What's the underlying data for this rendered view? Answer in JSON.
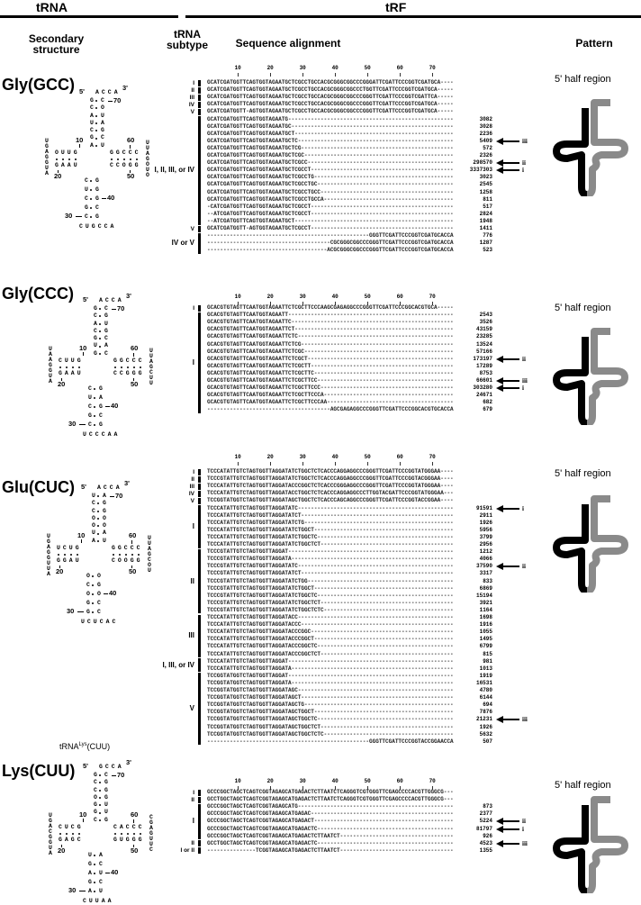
{
  "header": {
    "trna": "tRNA",
    "trf": "tRF"
  },
  "subheaders": {
    "secondary_structure": "Secondary structure",
    "subtype": "tRNA subtype",
    "alignment": "Sequence alignment",
    "pattern": "Pattern"
  },
  "ruler": [
    "10",
    "20",
    "30",
    "40",
    "50",
    "60",
    "70"
  ],
  "pattern_label": "5' half region",
  "colors": {
    "five_prime": "#000000",
    "three_prime": "#8a8a8a"
  },
  "lys_annotation": {
    "prefix": "tRNA",
    "sup": "Lys",
    "suffix": "(CUU)"
  },
  "structure_labels": {
    "five": "5'",
    "three": "3'",
    "n10": "10",
    "n20": "20",
    "n30": "30",
    "n40": "40",
    "n50": "50",
    "n60": "60",
    "n70": "70"
  },
  "blocks": [
    {
      "name": "Gly(GCC)",
      "structure": {
        "tail": "ACCA",
        "acc5": "GCAUCGA",
        "acc3": "COUAGCU",
        "dTop": "OUUG",
        "dBot": "GAAU",
        "dLoop": "UGAGGUA",
        "tTop": "GGCCC",
        "tBot": "CCOGG",
        "tLoop": "UUAGOUO",
        "acL": "CUCGC",
        "acR": "GGGCG",
        "acLoop": "CUGCCA"
      },
      "subtypes": [
        {
          "label": "I",
          "rows": [
            0,
            0
          ]
        },
        {
          "label": "II",
          "rows": [
            1,
            1
          ]
        },
        {
          "label": "III",
          "rows": [
            2,
            2
          ]
        },
        {
          "label": "IV",
          "rows": [
            3,
            3
          ]
        },
        {
          "label": "V",
          "rows": [
            4,
            4
          ]
        },
        {
          "label": "I, II, III, or IV",
          "rows": [
            5,
            19
          ]
        },
        {
          "label": "V",
          "rows": [
            20,
            20
          ]
        },
        {
          "label": "IV or V",
          "rows": [
            21,
            23
          ]
        }
      ],
      "rows": [
        {
          "seq": "GCATCGATGGTTCAGTGGTAGAATGCTCGCCTGCCACGCGGGCGGCCCGGGATTCGATTCCCGGTCGATGCA---",
          "count": ""
        },
        {
          "seq": "GCATCGATGGTTCAGTGGTAGAATGCTCGCCTGCCACGCGGGCGGCCCTGGTTCGATTCCCGGTCGATGCA---",
          "count": ""
        },
        {
          "seq": "GCATCGATGGTTCAGTGGTAGAATGCTCGCCTGCCACGCGGGCGGCCCGGGTTCGATTCCCGGTCGATTCA---",
          "count": ""
        },
        {
          "seq": "GCATCGATGGTTCAGTGGTAGAATGCTCGCCTGCCACGCGGGCGGCCCGGGTTCGATTCCCGGTCGATGCA---",
          "count": ""
        },
        {
          "seq": "GCATCGATGGTT-AGTGGTAGAATGCTCGCCTGCCACGCGGGCGGCCCGGGTTCGATTCCCGGTCGATGCA---",
          "count": ""
        },
        {
          "seq": "GCATCGATGGTTCAGTGGTAGAATG",
          "count": "3082"
        },
        {
          "seq": "GCATCGATGGTTCAGTGGTAGAATGC",
          "count": "3028"
        },
        {
          "seq": "GCATCGATGGTTCAGTGGTAGAATGCT",
          "count": "2236"
        },
        {
          "seq": "GCATCGATGGTTCAGTGGTAGAATGCTC",
          "count": "5409",
          "arrow": "iii"
        },
        {
          "seq": "GCATCGATGGTTCAGTGGTAGAATGCTCG",
          "count": "572"
        },
        {
          "seq": "GCATCGATGGTTCAGTGGTAGAATGCTCGC",
          "count": "2326"
        },
        {
          "seq": "GCATCGATGGTTCAGTGGTAGAATGCTCGCC",
          "count": "298570",
          "arrow": "ii"
        },
        {
          "seq": "GCATCGATGGTTCAGTGGTAGAATGCTCGCCT",
          "count": "3337303",
          "arrow": "i"
        },
        {
          "seq": "GCATCGATGGTTCAGTGGTAGAATGCTCGCCTG",
          "count": "3023"
        },
        {
          "seq": "GCATCGATGGTTCAGTGGTAGAATGCTCGCCTGC",
          "count": "2545"
        },
        {
          "seq": "GCATCGATGGTTCAGTGGTAGAATGCTCGCCTGCC",
          "count": "1258"
        },
        {
          "seq": "GCATCGATGGTTCAGTGGTAGAATGCTCGCCTGCCA",
          "count": "811"
        },
        {
          "seq": "-CATCGATGGTTCAGTGGTAGAATGCTCGCCT",
          "count": "517"
        },
        {
          "seq": "--ATCGATGGTTCAGTGGTAGAATGCTCGCCT",
          "count": "2824"
        },
        {
          "seq": "--ATCGATGGTTCAGTGGTAGAATGCT",
          "count": "1948"
        },
        {
          "seq": "GCATCGATGGTT-AGTGGTAGAATGCTCGCCT",
          "count": "1411"
        },
        {
          "seq": "--------------------------------------------------GGGTTCGATTCCCGGTCGATGCACCA",
          "count": "776"
        },
        {
          "seq": "--------------------------------------CGCGGGCGGCCCGGGTTCGATTCCCGGTCGATGCACCA",
          "count": "1287"
        },
        {
          "seq": "-------------------------------------ACGCGGGCGGCCCGGGTTCGATTCCCGGTCGATGCACCA",
          "count": "523"
        }
      ]
    },
    {
      "name": "Gly(CCC)",
      "structure": {
        "tail": "ACCA",
        "acc5": "GCACGUG",
        "acc3": "CGUGCAC",
        "dTop": "CUUG",
        "dBot": "GAAU",
        "dLoop": "UAAGGUA",
        "tTop": "GGCCC",
        "tBot": "CCGGG",
        "tLoop": "UUAGCUU",
        "acL": "CUCGC",
        "acR": "GAGCG",
        "acLoop": "UCCCAA"
      },
      "subtypes": [
        {
          "label": "I",
          "rows": [
            0,
            0
          ]
        },
        {
          "label": "I",
          "rows": [
            1,
            14
          ]
        }
      ],
      "rows": [
        {
          "seq": "GCACGTGTAGTTCAATGGTAGAATTCTCGCTTCCCAAGCGAGAGGCCCGGGTTCGATTCCCGGCACGTGCA---",
          "count": ""
        },
        {
          "seq": "GCACGTGTAGTTCAATGGTAGAATT",
          "count": "2543"
        },
        {
          "seq": "GCACGTGTAGTTCAATGGTAGAATTC",
          "count": "3526"
        },
        {
          "seq": "GCACGTGTAGTTCAATGGTAGAATTCT",
          "count": "43159"
        },
        {
          "seq": "GCACGTGTAGTTCAATGGTAGAATTCTC",
          "count": "23285"
        },
        {
          "seq": "GCACGTGTAGTTCAATGGTAGAATTCTCG",
          "count": "13524"
        },
        {
          "seq": "GCACGTGTAGTTCAATGGTAGAATTCTCGC",
          "count": "57166"
        },
        {
          "seq": "GCACGTGTAGTTCAATGGTAGAATTCTCGCT",
          "count": "173197",
          "arrow": "ii"
        },
        {
          "seq": "GCACGTGTAGTTCAATGGTAGAATTCTCGCTT",
          "count": "17289"
        },
        {
          "seq": "GCACGTGTAGTTCAATGGTAGAATTCTCGCTTC",
          "count": "8753"
        },
        {
          "seq": "GCACGTGTAGTTCAATGGTAGAATTCTCGCTTCC",
          "count": "66601",
          "arrow": "iii"
        },
        {
          "seq": "GCACGTGTAGTTCAATGGTAGAATTCTCGCTTCCC",
          "count": "303280",
          "arrow": "i"
        },
        {
          "seq": "GCACGTGTAGTTCAATGGTAGAATTCTCGCTTCCCA",
          "count": "24671"
        },
        {
          "seq": "GCACGTGTAGTTCAATGGTAGAATTCTCGCTTCCCAA",
          "count": "682"
        },
        {
          "seq": "--------------------------------------AGCGAGAGGCCCGGGTTCGATTCCCGGCACGTGCACCA",
          "count": "679"
        }
      ]
    },
    {
      "name": "Glu(CUC)",
      "structure": {
        "tail": "ACCA",
        "acc5": "UCCOOUA",
        "acc3": "AGGOOAU",
        "dTop": "UCUG",
        "dBot": "GGAU",
        "dLoop": "UGAGGUUA",
        "tTop": "GGCCC",
        "tBot": "COOGG",
        "tLoop": "UUAGCOU",
        "acL": "OCOGG",
        "acR": "OGOCC",
        "acLoop": "UCUCAC"
      },
      "subtypes": [
        {
          "label": "I",
          "rows": [
            0,
            0
          ]
        },
        {
          "label": "II",
          "rows": [
            1,
            1
          ]
        },
        {
          "label": "III",
          "rows": [
            2,
            2
          ]
        },
        {
          "label": "IV",
          "rows": [
            3,
            3
          ]
        },
        {
          "label": "V",
          "rows": [
            4,
            4
          ]
        },
        {
          "label": "I",
          "rows": [
            5,
            10
          ]
        },
        {
          "label": "II",
          "rows": [
            11,
            19
          ]
        },
        {
          "label": "III",
          "rows": [
            20,
            25
          ]
        },
        {
          "label": "I, III, or IV",
          "rows": [
            26,
            27
          ]
        },
        {
          "label": "V",
          "rows": [
            28,
            37
          ]
        }
      ],
      "rows": [
        {
          "seq": "TCCCATATTGTCTAGTGGTTAGGATATCTGGCTCTCACCCAGGAGGCCCGGGTTCGATTCCCGGTATGGGAA---",
          "count": ""
        },
        {
          "seq": "TCCCGTATTGTCTAGTGGTTAGGATATCTGGCTCTCACCCAGGAGGCCCGGGTTCGATTCCCGGTACGGGAA---",
          "count": ""
        },
        {
          "seq": "TCCCATATTGTCTAGTGGTTAGGATACCCGGCTCTCACCCGGGAGGCCCGGGTTCGATTCCCGGTATGGGAA---",
          "count": ""
        },
        {
          "seq": "TCCCATATTGTCTAGTGGTTAGGATACCTGGCTCTCACCCAGGAGGCCCTTGGTACGATTCCCGGTATGGGAA---",
          "count": ""
        },
        {
          "seq": "TCCGGTATGGTCTAGTGGTTAGGATAGCTGGCTCTCACCCAGCAGGCCCGGGTTCGATTCCCGGTACCGGAA---",
          "count": ""
        },
        {
          "seq": "TCCCATATTGTCTAGTGGTTAGGATATC",
          "count": "91591",
          "arrow": "i"
        },
        {
          "seq": "TCCCATATTGTCTAGTGGTTAGGATATCT",
          "count": "2911"
        },
        {
          "seq": "TCCCATATTGTCTAGTGGTTAGGATATCTG",
          "count": "1926"
        },
        {
          "seq": "TCCCATATTGTCTAGTGGTTAGGATATCTGGCT",
          "count": "5956"
        },
        {
          "seq": "TCCCATATTGTCTAGTGGTTAGGATATCTGGCTC",
          "count": "3799"
        },
        {
          "seq": "TCCCATATTGTCTAGTGGTTAGGATATCTGGCTCT",
          "count": "2956"
        },
        {
          "seq": "TCCCGTATTGTCTAGTGGTTAGGAT",
          "count": "1212"
        },
        {
          "seq": "TCCCGTATTGTCTAGTGGTTAGGATA",
          "count": "4066"
        },
        {
          "seq": "TCCCGTATTGTCTAGTGGTTAGGATATC",
          "count": "37590",
          "arrow": "ii"
        },
        {
          "seq": "TCCCGTATTGTCTAGTGGTTAGGATATCT",
          "count": "3317"
        },
        {
          "seq": "TCCCGTATTGTCTAGTGGTTAGGATATCTGG",
          "count": "833"
        },
        {
          "seq": "TCCCGTATTGTCTAGTGGTTAGGATATCTGGCT",
          "count": "6869"
        },
        {
          "seq": "TCCCGTATTGTCTAGTGGTTAGGATATCTGGCTC",
          "count": "15194"
        },
        {
          "seq": "TCCCGTATTGTCTAGTGGTTAGGATATCTGGCTCT",
          "count": "3921"
        },
        {
          "seq": "TCCCGTATTGTCTAGTGGTTAGGATATCTGGCTCTC",
          "count": "1164"
        },
        {
          "seq": "TCCCATATTGTCTAGTGGTTAGGATACC",
          "count": "1698"
        },
        {
          "seq": "TCCCATATTGTCTAGTGGTTAGGATACCC",
          "count": "1916"
        },
        {
          "seq": "TCCCATATTGTCTAGTGGTTAGGATACCCGGC",
          "count": "1055"
        },
        {
          "seq": "TCCCATATTGTCTAGTGGTTAGGATACCCGGCT",
          "count": "1495"
        },
        {
          "seq": "TCCCATATTGTCTAGTGGTTAGGATACCCGGCTC",
          "count": "6799"
        },
        {
          "seq": "TCCCATATTGTCTAGTGGTTAGGATACCCGGCTCT",
          "count": "815"
        },
        {
          "seq": "TCCCATATTGTCTAGTGGTTAGGAT",
          "count": "981"
        },
        {
          "seq": "TCCCATATTGTCTAGTGGTTAGGATA",
          "count": "1013"
        },
        {
          "seq": "TCCGGTATGGTCTAGTGGTTAGGAT",
          "count": "1919"
        },
        {
          "seq": "TCCGGTATGGTCTAGTGGTTAGGATA",
          "count": "16531"
        },
        {
          "seq": "TCCGGTATGGTCTAGTGGTTAGGATAGC",
          "count": "4780"
        },
        {
          "seq": "TCCGGTATGGTCTAGTGGTTAGGATAGCT",
          "count": "6144"
        },
        {
          "seq": "TCCGGTATGGTCTAGTGGTTAGGATAGCTG",
          "count": "694"
        },
        {
          "seq": "TCCGGTATGGTCTAGTGGTTAGGATAGCTGGCT",
          "count": "7876"
        },
        {
          "seq": "TCCGGTATGGTCTAGTGGTTAGGATAGCTGGCTC",
          "count": "21231",
          "arrow": "iii"
        },
        {
          "seq": "TCCGGTATGGTCTAGTGGTTAGGATAGCTGGCTCT",
          "count": "1926"
        },
        {
          "seq": "TCCGGTATGGTCTAGTGGTTAGGATAGCTGGCTCTC",
          "count": "5632"
        },
        {
          "seq": "--------------------------------------------------GGGTTCGATTCCCGGTACCGGAACCA",
          "count": "507"
        }
      ]
    },
    {
      "name": "Lys(CUU)",
      "structure": {
        "tail": "GCCA",
        "acc5": "GCCOGGC",
        "acc3": "CGGGUUG",
        "dTop": "CUCG",
        "dBot": "GAGC",
        "dLoop": "UGACGGUA",
        "tTop": "CACCC",
        "tBot": "GUGGG",
        "tLoop": "CGAGUUC",
        "acL": "UGAGA",
        "acR": "ACUCU",
        "acLoop": "CUUAA"
      },
      "subtypes": [
        {
          "label": "I",
          "rows": [
            0,
            0
          ]
        },
        {
          "label": "II",
          "rows": [
            1,
            1
          ]
        },
        {
          "label": "I",
          "rows": [
            2,
            6
          ]
        },
        {
          "label": "II",
          "rows": [
            7,
            7
          ]
        },
        {
          "label": "I or II",
          "rows": [
            8,
            8
          ]
        }
      ],
      "rows": [
        {
          "seq": "GCCCGGCTAGCTCAGTCGGTAGAGCATGAGACTCTTAATCTCAGGGTCGTGGGTTCGAGCCCCACGTTGGGCG---",
          "count": ""
        },
        {
          "seq": "GCCTGGCTAGCTCAGTCGGTAGAGCATGAGACTCTTAATCTCAGGGTCGTGGGTTCGAGCCCCACGTTGGGCG---",
          "count": ""
        },
        {
          "seq": "GCCCGGCTAGCTCAGTCGGTAGAGCATG",
          "count": "873"
        },
        {
          "seq": "GCCCGGCTAGCTCAGTCGGTAGAGCATGAGAC",
          "count": "2377"
        },
        {
          "seq": "GCCCGGCTAGCTCAGTCGGTAGAGCATGAGACT",
          "count": "5224",
          "arrow": "ii"
        },
        {
          "seq": "GCCCGGCTAGCTCAGTCGGTAGAGCATGAGACTC",
          "count": "81797",
          "arrow": "i"
        },
        {
          "seq": "GCCCGGCTAGCTCAGTCGGTAGAGCATGAGACTCTTAATCT",
          "count": "926"
        },
        {
          "seq": "GCCTGGCTAGCTCAGTCGGTAGAGCATGAGACTC",
          "count": "4523",
          "arrow": "iii"
        },
        {
          "seq": "---------------TCGGTAGAGCATGAGACTCTTAATCT",
          "count": "1355"
        }
      ]
    }
  ]
}
